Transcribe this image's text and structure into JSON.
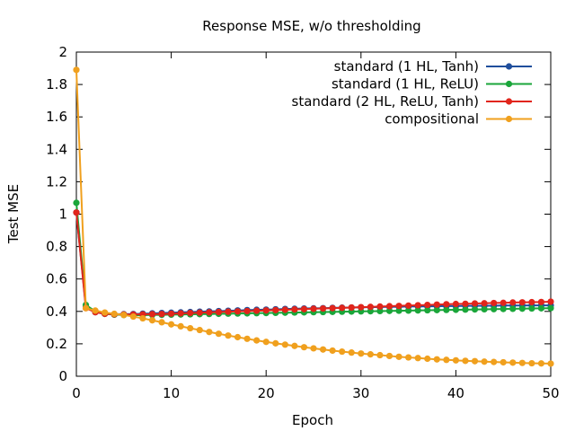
{
  "chart_data": {
    "type": "line",
    "title": "Response MSE, w/o thresholding",
    "xlabel": "Epoch",
    "ylabel": "Test MSE",
    "xlim": [
      0,
      50
    ],
    "ylim": [
      0,
      2
    ],
    "xticks": [
      0,
      10,
      20,
      30,
      40,
      50
    ],
    "yticks": [
      0,
      0.2,
      0.4,
      0.6,
      0.8,
      1,
      1.2,
      1.4,
      1.6,
      1.8,
      2
    ],
    "grid": false,
    "legend_position": "top-right",
    "x": [
      0,
      1,
      2,
      3,
      4,
      5,
      6,
      7,
      8,
      9,
      10,
      11,
      12,
      13,
      14,
      15,
      16,
      17,
      18,
      19,
      20,
      21,
      22,
      23,
      24,
      25,
      26,
      27,
      28,
      29,
      30,
      31,
      32,
      33,
      34,
      35,
      36,
      37,
      38,
      39,
      40,
      41,
      42,
      43,
      44,
      45,
      46,
      47,
      48,
      49,
      50
    ],
    "series": [
      {
        "name": "standard (1 HL, Tanh)",
        "color": "#1f4e9c",
        "values": [
          1.01,
          0.43,
          0.395,
          0.385,
          0.383,
          0.383,
          0.384,
          0.386,
          0.388,
          0.39,
          0.392,
          0.394,
          0.396,
          0.398,
          0.4,
          0.402,
          0.404,
          0.406,
          0.408,
          0.41,
          0.411,
          0.413,
          0.415,
          0.416,
          0.418,
          0.419,
          0.42,
          0.422,
          0.423,
          0.424,
          0.425,
          0.426,
          0.427,
          0.428,
          0.429,
          0.43,
          0.431,
          0.431,
          0.432,
          0.433,
          0.433,
          0.434,
          0.434,
          0.435,
          0.435,
          0.436,
          0.436,
          0.436,
          0.437,
          0.437,
          0.437
        ]
      },
      {
        "name": "standard (1 HL, ReLU)",
        "color": "#1aa63a",
        "values": [
          1.07,
          0.44,
          0.4,
          0.385,
          0.38,
          0.378,
          0.377,
          0.377,
          0.378,
          0.379,
          0.38,
          0.381,
          0.382,
          0.383,
          0.384,
          0.385,
          0.386,
          0.387,
          0.388,
          0.389,
          0.39,
          0.391,
          0.392,
          0.393,
          0.394,
          0.395,
          0.396,
          0.397,
          0.398,
          0.399,
          0.4,
          0.401,
          0.402,
          0.403,
          0.404,
          0.405,
          0.406,
          0.407,
          0.408,
          0.409,
          0.41,
          0.411,
          0.412,
          0.413,
          0.414,
          0.415,
          0.416,
          0.417,
          0.418,
          0.419,
          0.42
        ]
      },
      {
        "name": "standard (2 HL, ReLU, Tanh)",
        "color": "#e1251b",
        "values": [
          1.01,
          0.42,
          0.395,
          0.385,
          0.382,
          0.381,
          0.381,
          0.382,
          0.383,
          0.384,
          0.386,
          0.388,
          0.39,
          0.392,
          0.394,
          0.396,
          0.398,
          0.4,
          0.402,
          0.404,
          0.406,
          0.408,
          0.41,
          0.412,
          0.414,
          0.416,
          0.418,
          0.42,
          0.422,
          0.424,
          0.426,
          0.428,
          0.43,
          0.432,
          0.434,
          0.436,
          0.438,
          0.44,
          0.442,
          0.444,
          0.446,
          0.447,
          0.449,
          0.45,
          0.452,
          0.453,
          0.455,
          0.456,
          0.457,
          0.458,
          0.46
        ]
      },
      {
        "name": "compositional",
        "color": "#f0a01e",
        "values": [
          1.89,
          0.42,
          0.405,
          0.393,
          0.385,
          0.378,
          0.368,
          0.357,
          0.345,
          0.333,
          0.32,
          0.308,
          0.296,
          0.285,
          0.273,
          0.262,
          0.251,
          0.241,
          0.231,
          0.221,
          0.212,
          0.203,
          0.195,
          0.187,
          0.179,
          0.172,
          0.165,
          0.158,
          0.152,
          0.146,
          0.14,
          0.135,
          0.13,
          0.125,
          0.12,
          0.116,
          0.112,
          0.108,
          0.104,
          0.101,
          0.098,
          0.095,
          0.093,
          0.09,
          0.088,
          0.086,
          0.084,
          0.082,
          0.08,
          0.079,
          0.078
        ]
      }
    ]
  }
}
